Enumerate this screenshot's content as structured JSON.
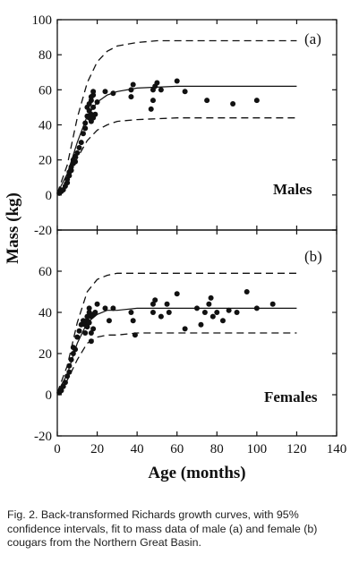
{
  "figure": {
    "ylabel": "Mass (kg)",
    "xlabel": "Age (months)",
    "caption": "Fig. 2. Back-transformed Richards growth curves, with 95% confidence intervals, fit to mass data of male (a) and female (b) cougars from the Northern Great Basin."
  },
  "chart_data": [
    {
      "type": "scatter",
      "panel_label": "(a)",
      "group_label": "Males",
      "xlim": [
        0,
        140
      ],
      "ylim": [
        -20,
        100
      ],
      "x_ticks": [
        0,
        20,
        40,
        60,
        80,
        100,
        120,
        140
      ],
      "y_ticks": [
        -20,
        0,
        20,
        40,
        60,
        80,
        100
      ],
      "x_tick_labels_shown": false,
      "points": [
        [
          1,
          1
        ],
        [
          2,
          2
        ],
        [
          3,
          3
        ],
        [
          4,
          5
        ],
        [
          5,
          7
        ],
        [
          5,
          9
        ],
        [
          6,
          11
        ],
        [
          6,
          13
        ],
        [
          7,
          14
        ],
        [
          7,
          16
        ],
        [
          8,
          18
        ],
        [
          8,
          20
        ],
        [
          9,
          22
        ],
        [
          9,
          19
        ],
        [
          10,
          24
        ],
        [
          11,
          27
        ],
        [
          12,
          30
        ],
        [
          13,
          35
        ],
        [
          14,
          38
        ],
        [
          14,
          41
        ],
        [
          15,
          45
        ],
        [
          15,
          50
        ],
        [
          16,
          44
        ],
        [
          16,
          48
        ],
        [
          16,
          52
        ],
        [
          17,
          42
        ],
        [
          17,
          46
        ],
        [
          17,
          54
        ],
        [
          17,
          56
        ],
        [
          18,
          44
        ],
        [
          18,
          50
        ],
        [
          18,
          57
        ],
        [
          18,
          59
        ],
        [
          19,
          46
        ],
        [
          20,
          53
        ],
        [
          24,
          59
        ],
        [
          28,
          58
        ],
        [
          37,
          56
        ],
        [
          37,
          60
        ],
        [
          38,
          63
        ],
        [
          47,
          49
        ],
        [
          48,
          54
        ],
        [
          48,
          60
        ],
        [
          49,
          62
        ],
        [
          50,
          64
        ],
        [
          52,
          60
        ],
        [
          60,
          65
        ],
        [
          64,
          59
        ],
        [
          75,
          54
        ],
        [
          88,
          52
        ],
        [
          100,
          54
        ]
      ],
      "curves": [
        {
          "style": "solid",
          "label": "fit",
          "x": [
            0,
            5,
            10,
            15,
            20,
            25,
            30,
            40,
            60,
            80,
            100,
            120
          ],
          "y": [
            1,
            12,
            30,
            45,
            53,
            57,
            59,
            61,
            62,
            62,
            62,
            62
          ]
        },
        {
          "style": "dashed",
          "label": "upper 95% CI",
          "x": [
            0,
            5,
            10,
            15,
            20,
            25,
            30,
            40,
            50,
            60,
            80,
            100,
            120
          ],
          "y": [
            1,
            17,
            44,
            64,
            76,
            82,
            85,
            87,
            88,
            88,
            88,
            88,
            88
          ]
        },
        {
          "style": "dashed",
          "label": "lower 95% CI",
          "x": [
            0,
            5,
            10,
            15,
            20,
            25,
            30,
            40,
            60,
            80,
            100,
            120
          ],
          "y": [
            1,
            9,
            21,
            31,
            37,
            40,
            42,
            43,
            44,
            44,
            44,
            44
          ]
        }
      ]
    },
    {
      "type": "scatter",
      "panel_label": "(b)",
      "group_label": "Females",
      "xlim": [
        0,
        140
      ],
      "ylim": [
        -20,
        80
      ],
      "x_ticks": [
        0,
        20,
        40,
        60,
        80,
        100,
        120,
        140
      ],
      "y_ticks": [
        -20,
        0,
        20,
        40,
        60,
        80
      ],
      "x_tick_labels_shown": true,
      "points": [
        [
          1,
          1
        ],
        [
          2,
          2
        ],
        [
          3,
          4
        ],
        [
          4,
          6
        ],
        [
          5,
          9
        ],
        [
          6,
          11
        ],
        [
          6,
          14
        ],
        [
          7,
          17
        ],
        [
          8,
          20
        ],
        [
          8,
          23
        ],
        [
          9,
          22
        ],
        [
          10,
          28
        ],
        [
          11,
          31
        ],
        [
          12,
          34
        ],
        [
          13,
          36
        ],
        [
          14,
          30
        ],
        [
          14,
          34
        ],
        [
          15,
          33
        ],
        [
          15,
          36
        ],
        [
          15,
          38
        ],
        [
          16,
          35
        ],
        [
          16,
          40
        ],
        [
          16,
          42
        ],
        [
          17,
          26
        ],
        [
          17,
          30
        ],
        [
          17,
          38
        ],
        [
          18,
          32
        ],
        [
          18,
          39
        ],
        [
          19,
          40
        ],
        [
          20,
          44
        ],
        [
          24,
          42
        ],
        [
          26,
          36
        ],
        [
          28,
          42
        ],
        [
          37,
          40
        ],
        [
          38,
          36
        ],
        [
          39,
          29
        ],
        [
          48,
          40
        ],
        [
          48,
          44
        ],
        [
          49,
          46
        ],
        [
          52,
          38
        ],
        [
          55,
          44
        ],
        [
          56,
          40
        ],
        [
          60,
          49
        ],
        [
          64,
          32
        ],
        [
          70,
          42
        ],
        [
          72,
          34
        ],
        [
          74,
          40
        ],
        [
          76,
          44
        ],
        [
          77,
          47
        ],
        [
          78,
          38
        ],
        [
          80,
          40
        ],
        [
          83,
          36
        ],
        [
          86,
          41
        ],
        [
          90,
          40
        ],
        [
          95,
          50
        ],
        [
          100,
          42
        ],
        [
          108,
          44
        ]
      ],
      "curves": [
        {
          "style": "solid",
          "label": "fit",
          "x": [
            0,
            5,
            10,
            15,
            20,
            25,
            30,
            40,
            60,
            80,
            100,
            120
          ],
          "y": [
            1,
            10,
            25,
            35,
            39,
            41,
            41,
            42,
            42,
            42,
            42,
            42
          ]
        },
        {
          "style": "dashed",
          "label": "upper 95% CI",
          "x": [
            0,
            5,
            10,
            15,
            20,
            25,
            30,
            40,
            60,
            80,
            100,
            120
          ],
          "y": [
            1,
            14,
            35,
            50,
            56,
            58,
            59,
            59,
            59,
            59,
            59,
            59
          ]
        },
        {
          "style": "dashed",
          "label": "lower 95% CI",
          "x": [
            0,
            5,
            10,
            15,
            20,
            25,
            30,
            40,
            60,
            80,
            100,
            120
          ],
          "y": [
            1,
            7,
            17,
            25,
            28,
            29,
            29,
            30,
            30,
            30,
            30,
            30
          ]
        }
      ]
    }
  ]
}
